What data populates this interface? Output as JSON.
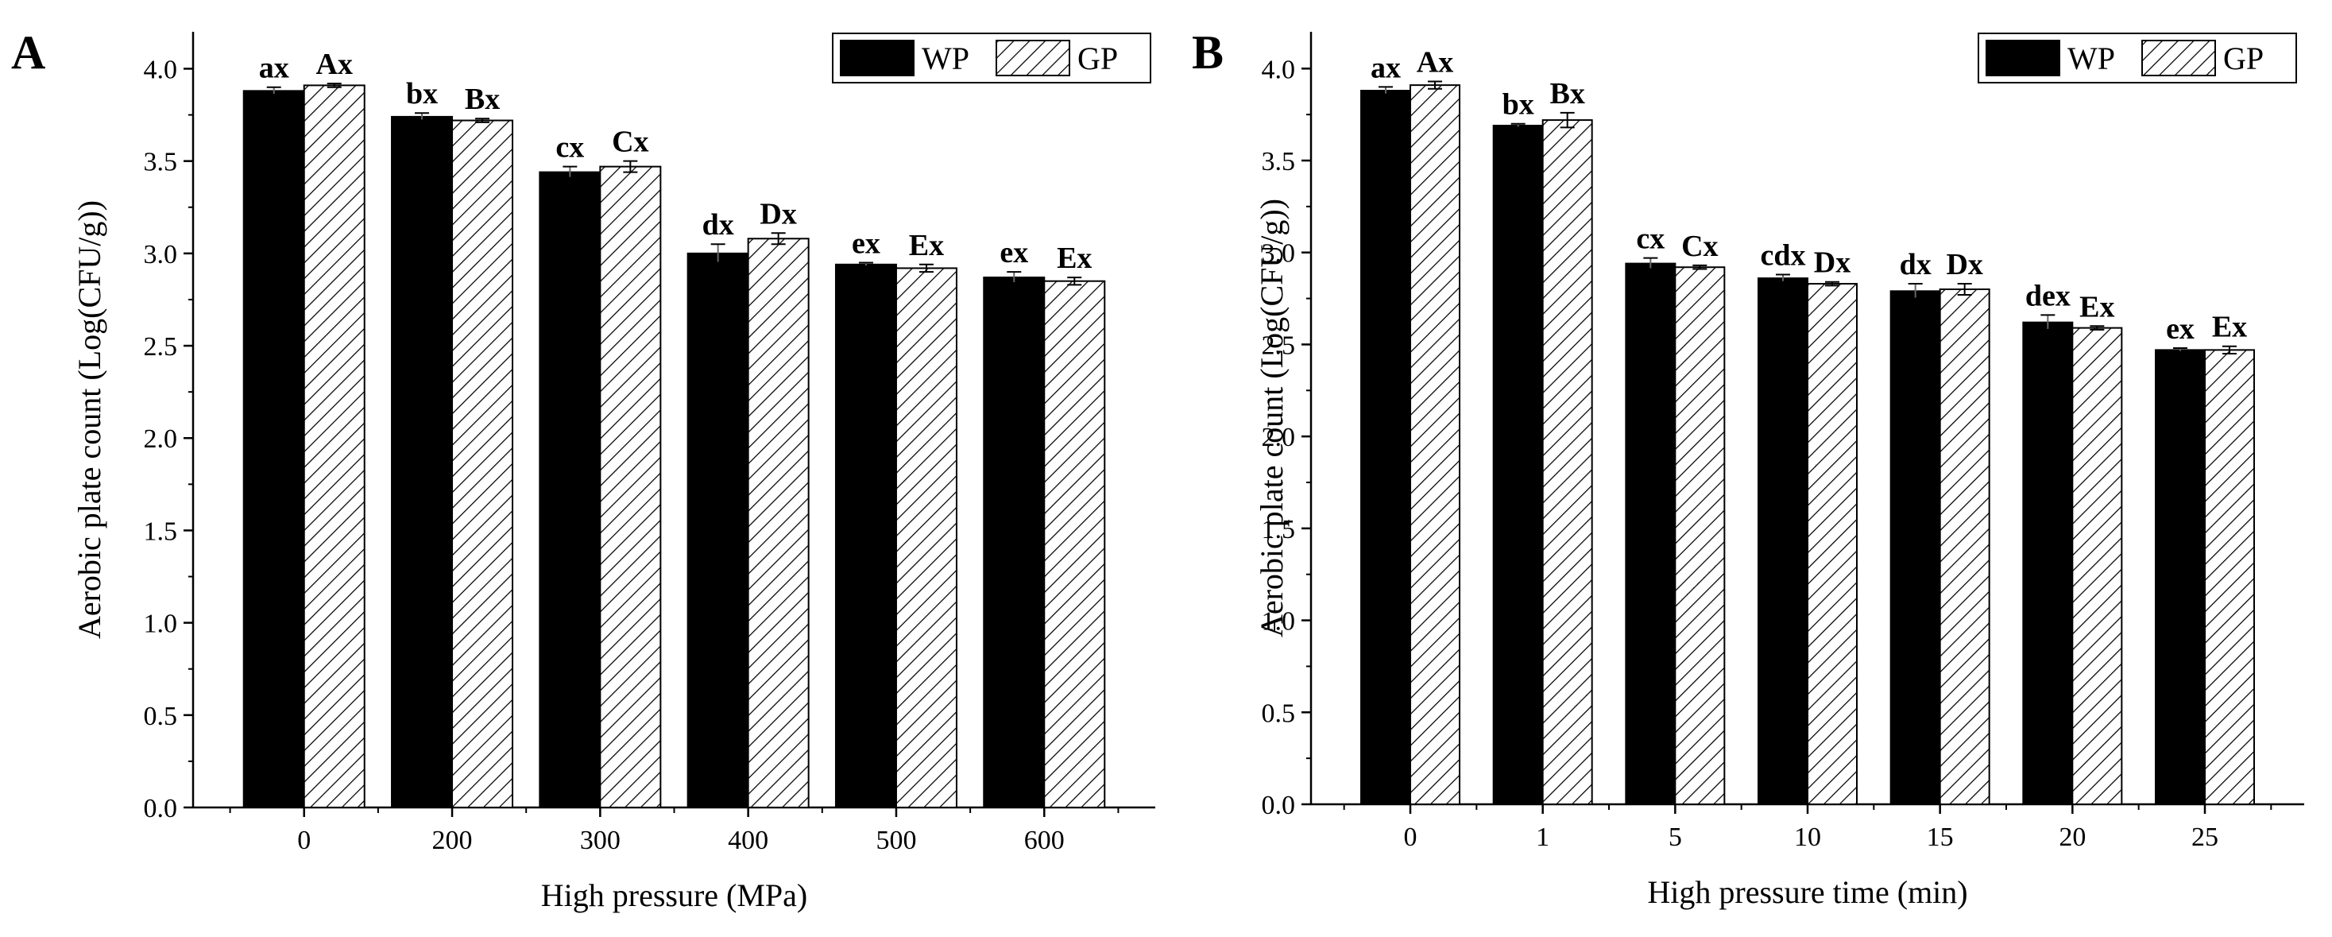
{
  "chart_data": [
    {
      "panel": "A",
      "type": "bar",
      "xlabel": "High pressure (MPa)",
      "ylabel": "Aerobic plate count (Log(CFU/g))",
      "categories": [
        "0",
        "200",
        "300",
        "400",
        "500",
        "600"
      ],
      "ylim": [
        0,
        4.2
      ],
      "yticks": [
        "0.0",
        "0.5",
        "1.0",
        "1.5",
        "2.0",
        "2.5",
        "3.0",
        "3.5",
        "4.0"
      ],
      "legend": [
        "WP",
        "GP"
      ],
      "legend_position": "top-right",
      "series": [
        {
          "name": "WP",
          "fill": "solid",
          "color": "#000000",
          "values": [
            3.88,
            3.74,
            3.44,
            3.0,
            2.94,
            2.87
          ],
          "errors": [
            0.02,
            0.02,
            0.03,
            0.05,
            0.01,
            0.03
          ],
          "labels": [
            "ax",
            "bx",
            "cx",
            "dx",
            "ex",
            "ex"
          ]
        },
        {
          "name": "GP",
          "fill": "hatched",
          "color": "#000000",
          "values": [
            3.91,
            3.72,
            3.47,
            3.08,
            2.92,
            2.85
          ],
          "errors": [
            0.01,
            0.01,
            0.03,
            0.03,
            0.02,
            0.02
          ],
          "labels": [
            "Ax",
            "Bx",
            "Cx",
            "Dx",
            "Ex",
            "Ex"
          ]
        }
      ]
    },
    {
      "panel": "B",
      "type": "bar",
      "xlabel": "High pressure time (min)",
      "ylabel": "Aerobic plate count (Log(CFU/g))",
      "categories": [
        "0",
        "1",
        "5",
        "10",
        "15",
        "20",
        "25"
      ],
      "ylim": [
        0,
        4.2
      ],
      "yticks": [
        "0.0",
        "0.5",
        "1.0",
        "1.5",
        "2.0",
        "2.5",
        "3.0",
        "3.5",
        "4.0"
      ],
      "legend": [
        "WP",
        "GP"
      ],
      "legend_position": "top-right",
      "series": [
        {
          "name": "WP",
          "fill": "solid",
          "color": "#000000",
          "values": [
            3.88,
            3.69,
            2.94,
            2.86,
            2.79,
            2.62,
            2.47
          ],
          "errors": [
            0.02,
            0.01,
            0.03,
            0.02,
            0.04,
            0.04,
            0.01
          ],
          "labels": [
            "ax",
            "bx",
            "cx",
            "cdx",
            "dx",
            "dex",
            "ex"
          ]
        },
        {
          "name": "GP",
          "fill": "hatched",
          "color": "#000000",
          "values": [
            3.91,
            3.72,
            2.92,
            2.83,
            2.8,
            2.59,
            2.47
          ],
          "errors": [
            0.02,
            0.04,
            0.01,
            0.01,
            0.03,
            0.01,
            0.02
          ],
          "labels": [
            "Ax",
            "Bx",
            "Cx",
            "Dx",
            "Dx",
            "Ex",
            "Ex"
          ]
        }
      ]
    }
  ]
}
